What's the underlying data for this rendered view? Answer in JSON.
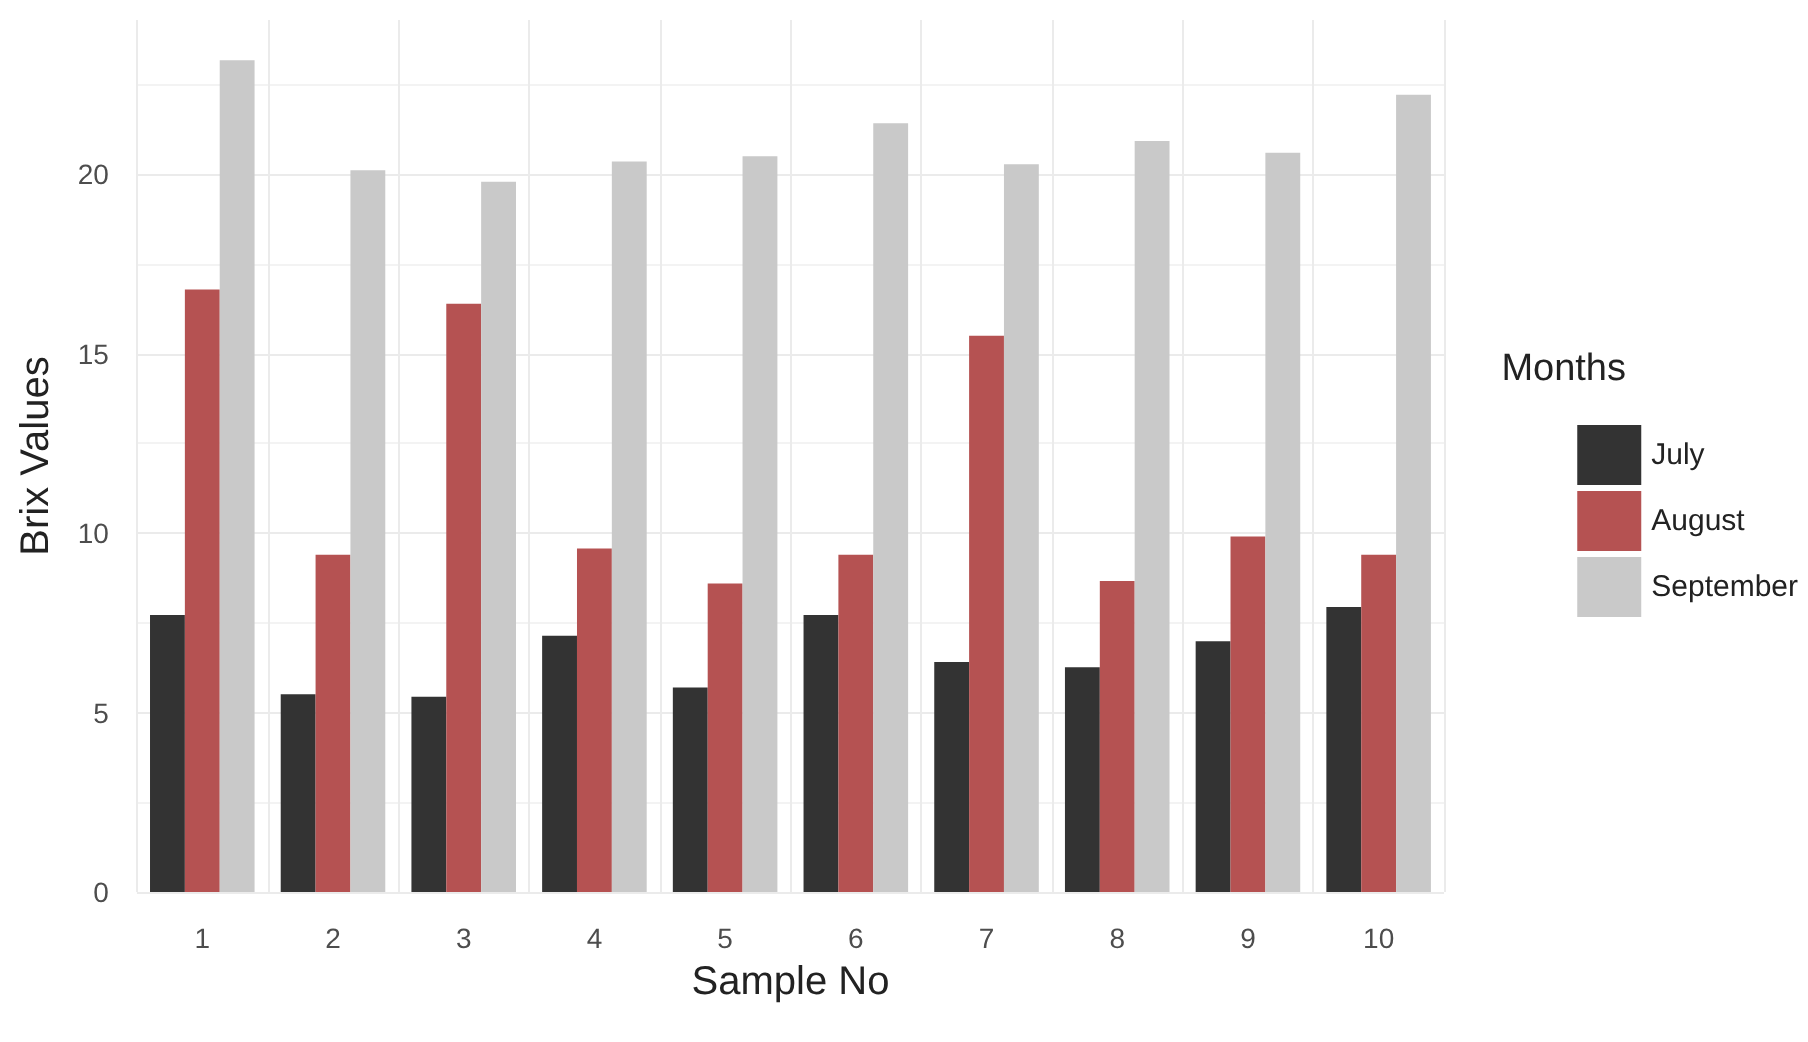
{
  "chart_data": {
    "type": "bar",
    "xlabel": "Sample No",
    "ylabel": "Brix Values",
    "legend_title": "Months",
    "categories": [
      "1",
      "2",
      "3",
      "4",
      "5",
      "6",
      "7",
      "8",
      "9",
      "10"
    ],
    "series": [
      {
        "name": "July",
        "color": "#333333",
        "values": [
          7.72,
          5.51,
          5.44,
          7.14,
          5.7,
          7.72,
          6.41,
          6.26,
          6.99,
          7.94
        ]
      },
      {
        "name": "August",
        "color": "#b55252",
        "values": [
          16.79,
          9.4,
          16.39,
          9.57,
          8.6,
          9.4,
          15.5,
          8.67,
          9.91,
          9.4
        ]
      },
      {
        "name": "September",
        "color": "#c9c9c9",
        "values": [
          23.18,
          20.11,
          19.79,
          20.36,
          20.5,
          21.42,
          20.28,
          20.93,
          20.6,
          22.22
        ]
      }
    ],
    "ylim": [
      0,
      24.3
    ],
    "yticks": [
      0,
      5,
      10,
      15,
      20
    ],
    "grid": true,
    "legend": "right"
  }
}
